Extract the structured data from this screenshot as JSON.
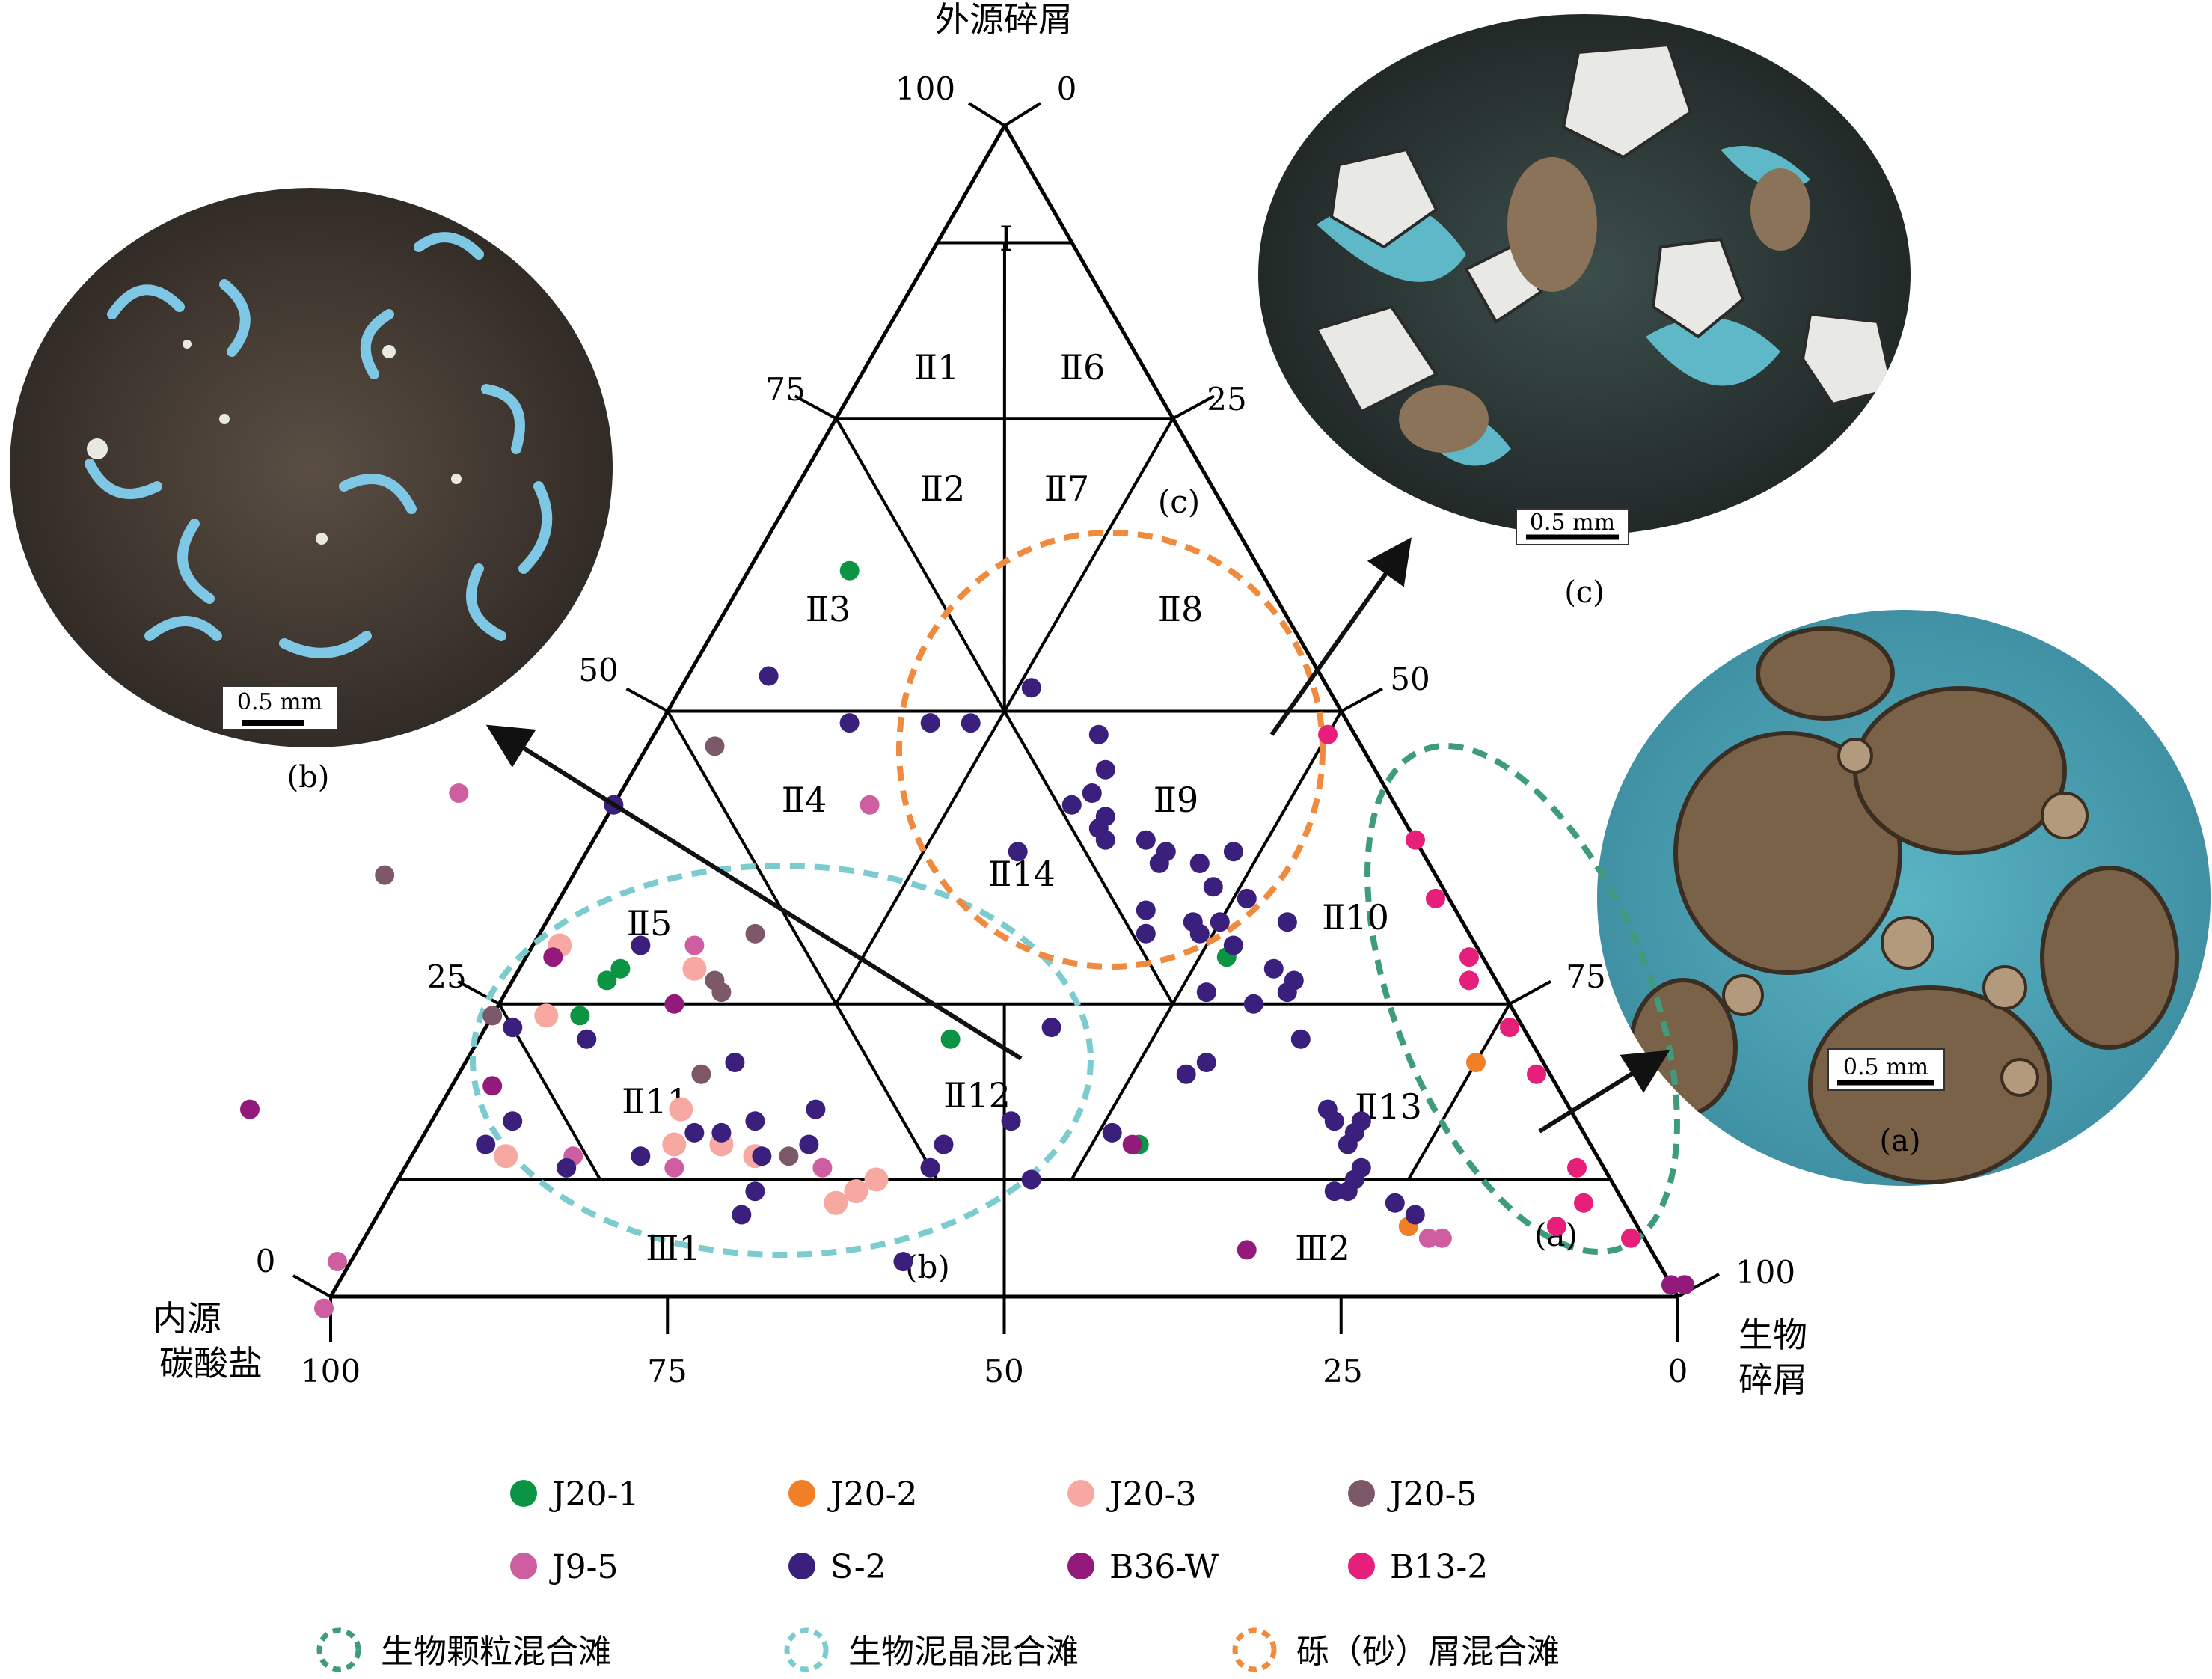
{
  "chart_data": {
    "type": "scatter",
    "subtype": "ternary",
    "axes": {
      "top": {
        "label": "外源碎屑",
        "ticks": [
          "100",
          "75",
          "50",
          "25",
          "0"
        ]
      },
      "left": {
        "label_lines": [
          "内源",
          "碳酸盐"
        ],
        "ticks": [
          "100",
          "75",
          "50",
          "25",
          "0"
        ]
      },
      "right": {
        "label_lines": [
          "生物",
          "碎屑"
        ],
        "ticks": [
          "0",
          "25",
          "50",
          "75",
          "100"
        ]
      },
      "left_edge_ticks": [
        "0",
        "25",
        "50",
        "75",
        "100"
      ],
      "right_edge_ticks": [
        "0",
        "25",
        "50",
        "75",
        "100"
      ]
    },
    "zones": [
      "Ⅰ",
      "Ⅱ1",
      "Ⅱ2",
      "Ⅱ3",
      "Ⅱ4",
      "Ⅱ5",
      "Ⅱ6",
      "Ⅱ7",
      "Ⅱ8",
      "Ⅱ9",
      "Ⅱ10",
      "Ⅱ11",
      "Ⅱ12",
      "Ⅱ13",
      "Ⅱ14",
      "Ⅲ1",
      "Ⅲ2"
    ],
    "series": [
      {
        "name": "J20-1",
        "color": "#0a9444",
        "points": [
          [
            13,
            33.5,
            53.5
          ],
          [
            22,
            43,
            35
          ],
          [
            24,
            69.5,
            6.5
          ],
          [
            27,
            66,
            7
          ],
          [
            28,
            64.5,
            7.5
          ],
          [
            62,
            30.5,
            7.5
          ],
          [
            29,
            19,
            52
          ]
        ]
      },
      {
        "name": "J20-2",
        "color": "#f07f26",
        "points": [
          [
            6,
            17,
            77
          ],
          [
            10,
            19,
            71
          ],
          [
            20,
            5,
            75
          ]
        ]
      },
      {
        "name": "J20-3",
        "color": "#f7a9a1",
        "points": [
          [
            8,
            58.5,
            33.5
          ],
          [
            9,
            56.5,
            34.5
          ],
          [
            10,
            54.5,
            35.5
          ],
          [
            12,
            62.5,
            25.5
          ],
          [
            13,
            64.5,
            22.5
          ],
          [
            12,
            81,
            7
          ],
          [
            13,
            68,
            19
          ],
          [
            16,
            66,
            18
          ],
          [
            24,
            72,
            4
          ],
          [
            28,
            59,
            13
          ],
          [
            30,
            68,
            2
          ]
        ]
      },
      {
        "name": "J20-5",
        "color": "#7d5869",
        "points": [
          [
            47,
            48,
            5
          ],
          [
            36,
            78,
            -14
          ],
          [
            31,
            53,
            16
          ],
          [
            26,
            58,
            16
          ],
          [
            27,
            58,
            15
          ],
          [
            19,
            63,
            18
          ],
          [
            24,
            76,
            0
          ],
          [
            12,
            60,
            28
          ]
        ]
      },
      {
        "name": "J9-5",
        "color": "#cf5ea0",
        "points": [
          [
            43,
            69,
            -12
          ],
          [
            11,
            58,
            31
          ],
          [
            5,
            16,
            79
          ],
          [
            5,
            15,
            80
          ],
          [
            -1,
            101,
            0
          ],
          [
            3,
            98,
            -1
          ],
          [
            30,
            58,
            12
          ],
          [
            12,
            76,
            12
          ],
          [
            11,
            69,
            20
          ],
          [
            42,
            39,
            19
          ]
        ]
      },
      {
        "name": "S-2",
        "color": "#3b1f7c",
        "points": [
          [
            53,
            41,
            6
          ],
          [
            49,
            37,
            14
          ],
          [
            52,
            22,
            26
          ],
          [
            49,
            31,
            20
          ],
          [
            49,
            28,
            23
          ],
          [
            48,
            19,
            33
          ],
          [
            42,
            24,
            34
          ],
          [
            45,
            20,
            35
          ],
          [
            43,
            22,
            35
          ],
          [
            41,
            22,
            37
          ],
          [
            39,
            23,
            38
          ],
          [
            39,
            20,
            41
          ],
          [
            38,
            19,
            43
          ],
          [
            37,
            20,
            43
          ],
          [
            32,
            20,
            48
          ],
          [
            33,
            23,
            44
          ],
          [
            31,
            24,
            45
          ],
          [
            32,
            18,
            50
          ],
          [
            30,
            18,
            52
          ],
          [
            31,
            20,
            49
          ],
          [
            37,
            17,
            46
          ],
          [
            35,
            17,
            48
          ],
          [
            38,
            14,
            48
          ],
          [
            34,
            15,
            51
          ],
          [
            32,
            13,
            55
          ],
          [
            27,
            15,
            58
          ],
          [
            26,
            16,
            58
          ],
          [
            28,
            16,
            56
          ],
          [
            22,
            17,
            61
          ],
          [
            25,
            19,
            56
          ],
          [
            16,
            18,
            66
          ],
          [
            15,
            16,
            69
          ],
          [
            14,
            17,
            69
          ],
          [
            15,
            18,
            67
          ],
          [
            13,
            18,
            69
          ],
          [
            11,
            18,
            71
          ],
          [
            10,
            19,
            71
          ],
          [
            9,
            21,
            70
          ],
          [
            9,
            20,
            71
          ],
          [
            8,
            17,
            75
          ],
          [
            7,
            16,
            77
          ],
          [
            26,
            22,
            52
          ],
          [
            20,
            25,
            55
          ],
          [
            19,
            27,
            54
          ],
          [
            14,
            35,
            51
          ],
          [
            10,
            43,
            47
          ],
          [
            11,
            50,
            39
          ],
          [
            3,
            56,
            41
          ],
          [
            23,
            35,
            42
          ],
          [
            23,
            75,
            2
          ],
          [
            40,
            23,
            37
          ],
          [
            38,
            30,
            32
          ],
          [
            42,
            58,
            0
          ],
          [
            30,
            62,
            8
          ],
          [
            22,
            70,
            8
          ],
          [
            13,
            82,
            5
          ],
          [
            15,
            79,
            6
          ],
          [
            12,
            71,
            17
          ],
          [
            14,
            66,
            20
          ],
          [
            11,
            77,
            12
          ],
          [
            14,
            64,
            22
          ],
          [
            7,
            66,
            27
          ],
          [
            9,
            64,
            27
          ],
          [
            12,
            62,
            26
          ],
          [
            15,
            61,
            24
          ],
          [
            13,
            58,
            29
          ],
          [
            15,
            42,
            43
          ],
          [
            20,
            60,
            20
          ],
          [
            16,
            56,
            28
          ],
          [
            13,
            48,
            39
          ]
        ]
      },
      {
        "name": "B36-W",
        "color": "#931a7b",
        "points": [
          [
            18,
            79,
            3
          ],
          [
            29,
            69,
            2
          ],
          [
            16,
            98,
            -14
          ],
          [
            4,
            30,
            66
          ],
          [
            1,
            0,
            99
          ],
          [
            1,
            -1,
            100
          ],
          [
            13,
            34,
            53
          ],
          [
            25,
            62,
            13
          ]
        ]
      },
      {
        "name": "B13-2",
        "color": "#e6207a",
        "points": [
          [
            48,
            2,
            50
          ],
          [
            39,
            0,
            61
          ],
          [
            34,
            1,
            65
          ],
          [
            27,
            2,
            71
          ],
          [
            23,
            1,
            76
          ],
          [
            19,
            1,
            80
          ],
          [
            11,
            2,
            87
          ],
          [
            8,
            3,
            89
          ],
          [
            6,
            6,
            88
          ],
          [
            5,
            1,
            94
          ],
          [
            29,
            1,
            70
          ]
        ]
      }
    ],
    "legend": {
      "placement": "bottom",
      "regions": [
        {
          "name": "生物颗粒混合滩",
          "color": "#3f9b7e"
        },
        {
          "name": "生物泥晶混合滩",
          "color": "#7ccccf"
        },
        {
          "name": "砾（砂）屑混合滩",
          "color": "#ef8a3e"
        }
      ]
    },
    "region_labels": [
      "(a)",
      "(b)",
      "(c)"
    ],
    "photos": [
      {
        "caption": "(a)",
        "scale": "0.5 mm"
      },
      {
        "caption": "(b)",
        "scale": "0.5 mm"
      },
      {
        "caption": "(c)",
        "scale": "0.5 mm"
      }
    ]
  }
}
